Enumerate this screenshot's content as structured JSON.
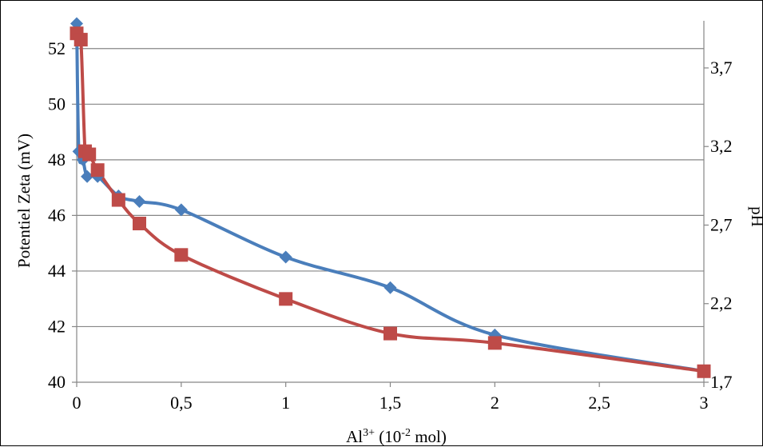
{
  "chart_data": {
    "type": "line",
    "xlabel_parts": {
      "base": "Al",
      "sup1": "3+",
      "mid": " (10",
      "sup2": "-2",
      "end": " mol)"
    },
    "ylabel": "Potentiel  Zeta (mV)",
    "y2label": "pH",
    "xlim": [
      0,
      3
    ],
    "ylim": [
      40,
      53
    ],
    "y2lim": [
      1.7,
      4.0
    ],
    "x_ticks": [
      0,
      0.5,
      1,
      1.5,
      2,
      2.5,
      3
    ],
    "x_tick_labels": [
      "0",
      "0,5",
      "1",
      "1,5",
      "2",
      "2,5",
      "3"
    ],
    "y_ticks": [
      40,
      42,
      44,
      46,
      48,
      50,
      52
    ],
    "y_tick_labels": [
      "40",
      "42",
      "44",
      "46",
      "48",
      "50",
      "52"
    ],
    "y2_ticks": [
      1.7,
      2.2,
      2.7,
      3.2,
      3.7
    ],
    "y2_tick_labels": [
      "1,7",
      "2,2",
      "2,7",
      "3,2",
      "3,7"
    ],
    "grid": true,
    "series": [
      {
        "axis": "left",
        "marker": "diamond",
        "color": "#4a7ebb",
        "x": [
          0,
          0.01,
          0.03,
          0.05,
          0.1,
          0.2,
          0.3,
          0.5,
          1,
          1.5,
          2,
          3
        ],
        "y": [
          52.9,
          48.3,
          48.0,
          47.4,
          47.4,
          46.7,
          46.5,
          46.2,
          44.5,
          43.4,
          41.7,
          40.4
        ]
      },
      {
        "axis": "right",
        "marker": "square",
        "color": "#be4b48",
        "x": [
          0,
          0.02,
          0.04,
          0.06,
          0.1,
          0.2,
          0.3,
          0.5,
          1,
          1.5,
          2,
          3
        ],
        "y": [
          3.92,
          3.88,
          3.17,
          3.15,
          3.05,
          2.86,
          2.71,
          2.51,
          2.23,
          2.01,
          1.95,
          1.77
        ]
      }
    ]
  }
}
